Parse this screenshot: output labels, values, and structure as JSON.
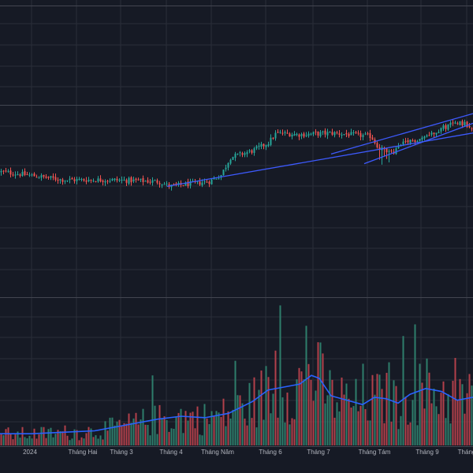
{
  "chart_data": {
    "type": "candlestick",
    "colors": {
      "background": "#161a25",
      "grid": "#2a2e39",
      "up": "#26a69a",
      "down": "#ef5350",
      "volume_up": "#2e7d6b",
      "volume_down": "#b2404a",
      "volume_ma": "#2962ff",
      "trendline": "#3d5afe",
      "pane_separator": "#434651",
      "axis_text": "#b2b5be"
    },
    "grid": true,
    "x_axis": {
      "ticks": [
        "2024",
        "Tháng Hai",
        "Tháng 3",
        "Tháng 4",
        "Tháng Năm",
        "Tháng 6",
        "Tháng 7",
        "Tháng Tám",
        "Tháng 9",
        "Tháng"
      ]
    },
    "price_pane": {
      "ylim": [
        0,
        100
      ],
      "closes": [
        [
          0,
          62
        ],
        [
          35,
          60
        ],
        [
          80,
          57
        ],
        [
          140,
          57
        ],
        [
          200,
          56
        ],
        [
          215,
          53
        ],
        [
          265,
          56
        ],
        [
          280,
          60
        ],
        [
          292,
          71
        ],
        [
          320,
          75
        ],
        [
          340,
          80
        ],
        [
          350,
          86
        ],
        [
          380,
          85
        ],
        [
          420,
          86
        ],
        [
          470,
          84
        ],
        [
          480,
          77
        ],
        [
          495,
          73
        ],
        [
          510,
          79
        ],
        [
          540,
          84
        ],
        [
          555,
          88
        ],
        [
          580,
          93
        ],
        [
          600,
          90
        ]
      ],
      "trendlines": [
        {
          "from": [
            212,
            53
          ],
          "to": [
            600,
            86
          ]
        },
        {
          "from": [
            420,
            73
          ],
          "to": [
            600,
            98
          ]
        },
        {
          "from": [
            462,
            67
          ],
          "to": [
            600,
            92
          ]
        }
      ]
    },
    "volume_pane": {
      "ylim": [
        0,
        100
      ],
      "volume_ma": [
        [
          0,
          8
        ],
        [
          40,
          8
        ],
        [
          80,
          9
        ],
        [
          120,
          10
        ],
        [
          160,
          14
        ],
        [
          200,
          18
        ],
        [
          230,
          20
        ],
        [
          260,
          19
        ],
        [
          290,
          22
        ],
        [
          320,
          30
        ],
        [
          340,
          38
        ],
        [
          360,
          40
        ],
        [
          380,
          42
        ],
        [
          395,
          48
        ],
        [
          405,
          46
        ],
        [
          420,
          34
        ],
        [
          440,
          31
        ],
        [
          460,
          28
        ],
        [
          475,
          33
        ],
        [
          490,
          32
        ],
        [
          505,
          29
        ],
        [
          520,
          35
        ],
        [
          540,
          39
        ],
        [
          560,
          37
        ],
        [
          580,
          31
        ],
        [
          600,
          33
        ]
      ]
    }
  }
}
